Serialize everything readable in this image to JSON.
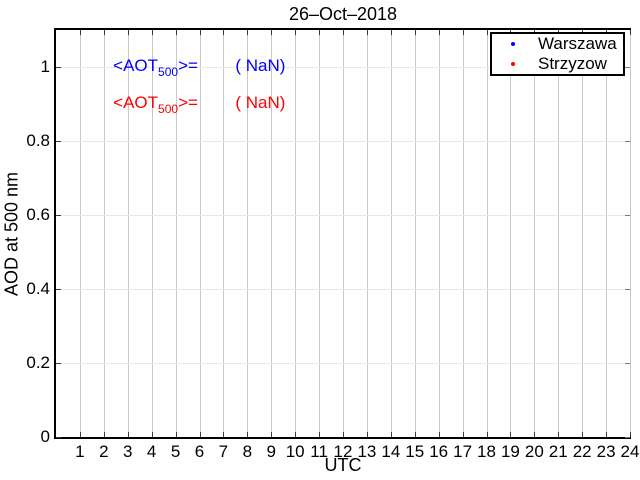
{
  "chart_data": {
    "type": "scatter",
    "title": "26–Oct–2018",
    "xlabel": "UTC",
    "ylabel": "AOD at 500 nm",
    "xlim": [
      0,
      24
    ],
    "ylim": [
      0,
      1.1
    ],
    "xticks": [
      1,
      2,
      3,
      4,
      5,
      6,
      7,
      8,
      9,
      10,
      11,
      12,
      13,
      14,
      15,
      16,
      17,
      18,
      19,
      20,
      21,
      22,
      23,
      24
    ],
    "yticks": [
      0,
      0.2,
      0.4,
      0.6,
      0.8,
      1
    ],
    "ytick_labels": [
      "0",
      "0.2",
      "0.4",
      "0.6",
      "0.8",
      "1"
    ],
    "grid": true,
    "legend_position": "top-right",
    "series": [
      {
        "name": "Warszawa",
        "color": "#0000ff",
        "marker": "dot",
        "x": [],
        "y": []
      },
      {
        "name": "Strzyzow",
        "color": "#ff0000",
        "marker": "dot",
        "x": [],
        "y": []
      }
    ],
    "annotations": [
      {
        "pre": "<AOT",
        "sub": "500",
        "post": ">=",
        "value": "( NaN)",
        "color": "#0000ff",
        "x_label": 2.39,
        "x_value": 7.5,
        "y": 1.0
      },
      {
        "pre": "<AOT",
        "sub": "500",
        "post": ">=",
        "value": "( NaN)",
        "color": "#ff0000",
        "x_label": 2.39,
        "x_value": 7.5,
        "y": 0.9
      }
    ],
    "colors": {
      "axis": "#000000",
      "grid_vertical": "#c8c8c8",
      "grid_horizontal": "#e8e8e8",
      "background": "#ffffff"
    }
  }
}
